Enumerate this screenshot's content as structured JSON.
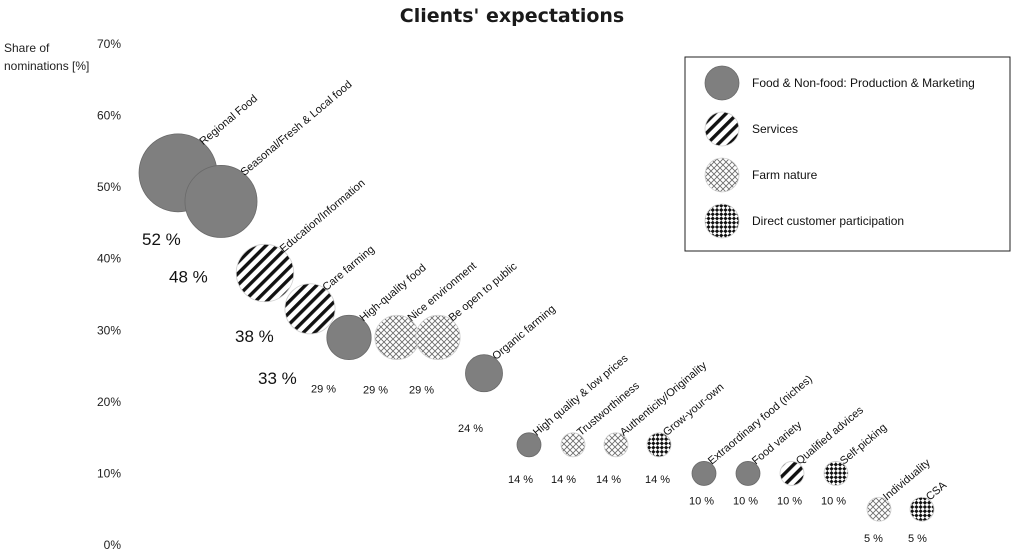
{
  "chart_data": {
    "type": "scatter",
    "title": "Clients' expectations",
    "ylabel_lines": [
      "Share of",
      "nominations [%]"
    ],
    "ylim": [
      0,
      70
    ],
    "yticks": [
      "0%",
      "10%",
      "20%",
      "30%",
      "40%",
      "50%",
      "60%",
      "70%"
    ],
    "legend_position": "top-right",
    "categories": [
      {
        "name": "Food & Non-food: Production & Marketing",
        "pattern": "solid",
        "color": "#7f7f7f"
      },
      {
        "name": "Services",
        "pattern": "diagonal-stripes",
        "color": "#111111"
      },
      {
        "name": "Farm nature",
        "pattern": "crosshatch",
        "color": "#777777"
      },
      {
        "name": "Direct customer participation",
        "pattern": "checker",
        "color": "#111111"
      }
    ],
    "points": [
      {
        "label": "Regional Food",
        "value": 52,
        "value_label": "52 %",
        "category": 0
      },
      {
        "label": "Seasonal/Fresh & Local food",
        "value": 48,
        "value_label": "48 %",
        "category": 0
      },
      {
        "label": "Education/Information",
        "value": 38,
        "value_label": "38 %",
        "category": 1
      },
      {
        "label": "Care farming",
        "value": 33,
        "value_label": "33 %",
        "category": 1
      },
      {
        "label": "High-quality food",
        "value": 29,
        "value_label": "29 %",
        "category": 0
      },
      {
        "label": "Nice environment",
        "value": 29,
        "value_label": "29 %",
        "category": 2
      },
      {
        "label": "Be open to public",
        "value": 29,
        "value_label": "29 %",
        "category": 2
      },
      {
        "label": "Organic farming",
        "value": 24,
        "value_label": "24 %",
        "category": 0
      },
      {
        "label": "High quality & low prices",
        "value": 14,
        "value_label": "14 %",
        "category": 0
      },
      {
        "label": "Trustworthiness",
        "value": 14,
        "value_label": "14 %",
        "category": 2
      },
      {
        "label": "Authenticity/Originality",
        "value": 14,
        "value_label": "14 %",
        "category": 2
      },
      {
        "label": "Grow-your-own",
        "value": 14,
        "value_label": "14 %",
        "category": 3
      },
      {
        "label": "Extraordinary food (niches)",
        "value": 10,
        "value_label": "10 %",
        "category": 0
      },
      {
        "label": "Food variety",
        "value": 10,
        "value_label": "10 %",
        "category": 0
      },
      {
        "label": "Qualified advices",
        "value": 10,
        "value_label": "10 %",
        "category": 1
      },
      {
        "label": "Self-picking",
        "value": 10,
        "value_label": "10 %",
        "category": 3
      },
      {
        "label": "Individuality",
        "value": 5,
        "value_label": "5 %",
        "category": 2
      },
      {
        "label": "CSA",
        "value": 5,
        "value_label": "5 %",
        "category": 3
      }
    ]
  }
}
